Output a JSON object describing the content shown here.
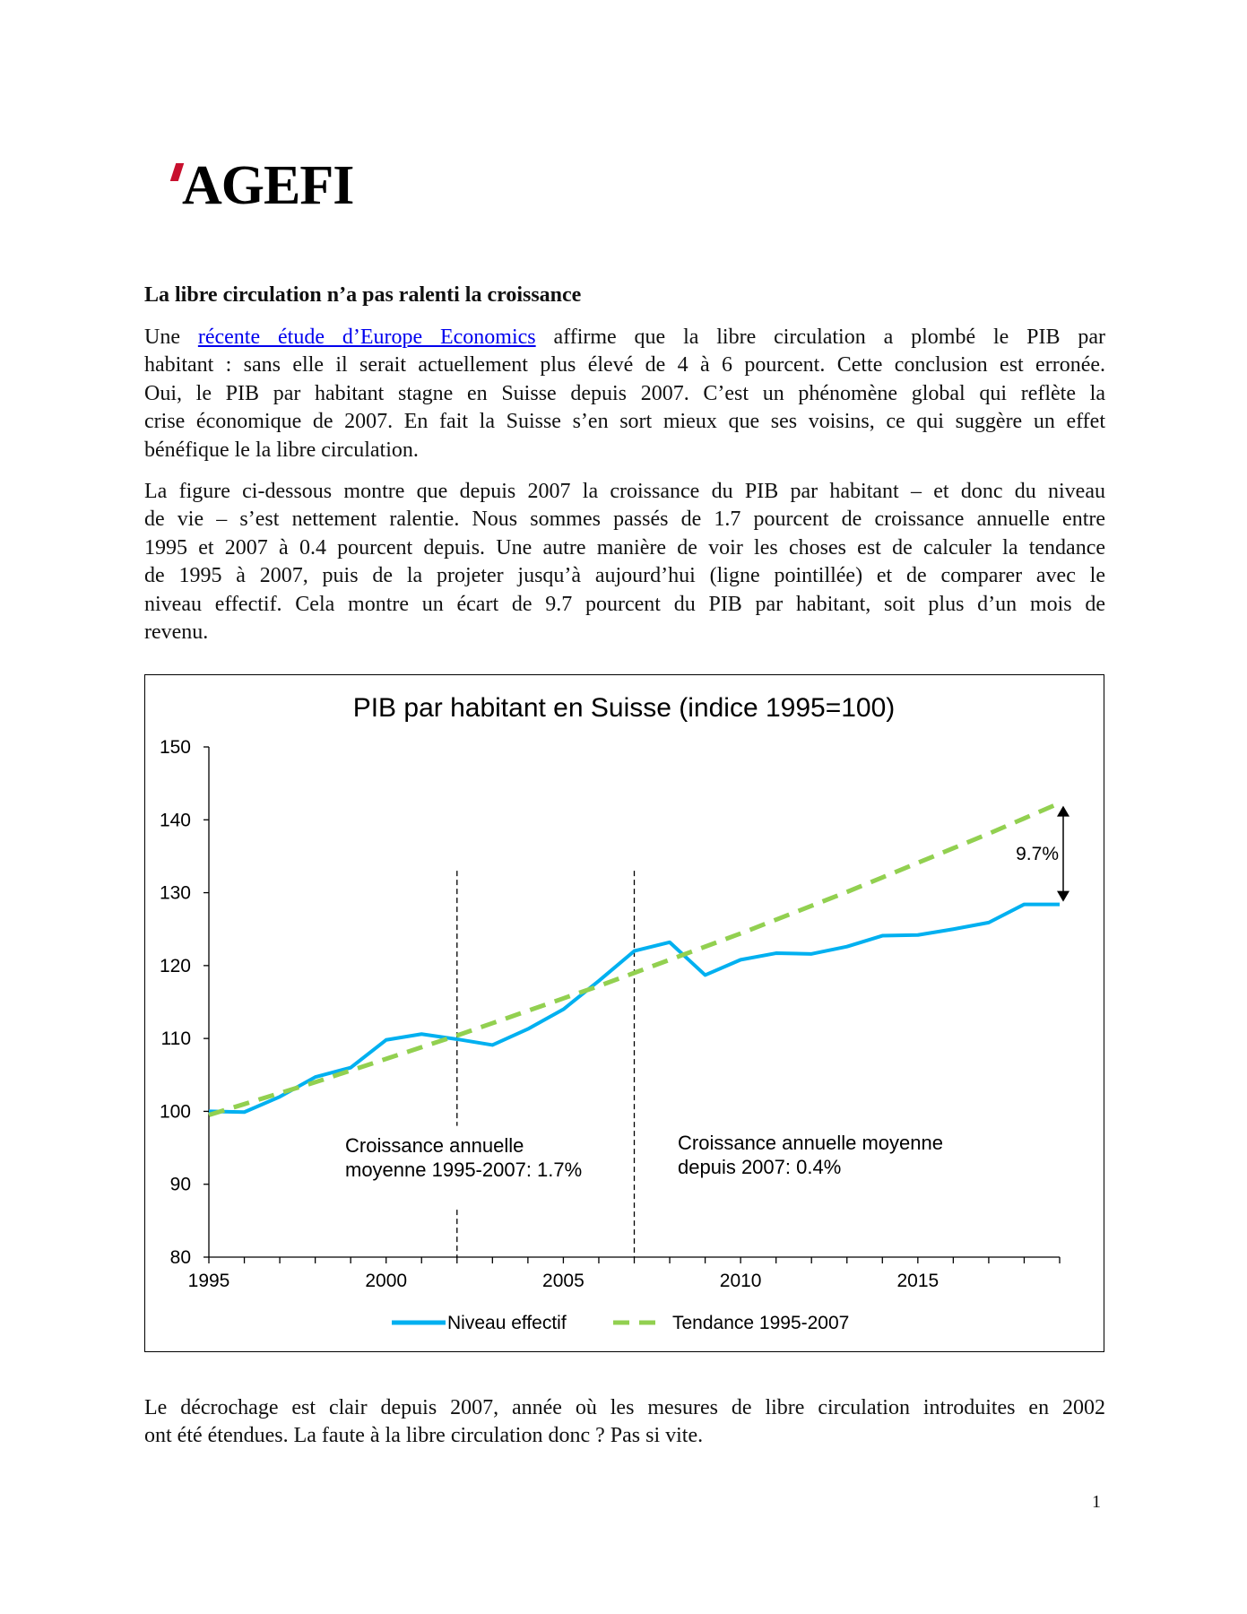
{
  "logo": {
    "text": "AGEFI",
    "accent_color": "#c8102e"
  },
  "heading": "La libre circulation n’a pas ralenti la croissance",
  "paragraph1": {
    "first_line": {
      "prefix": "Une ",
      "link": "récente étude d’Europe Economics",
      "suffix": " affirme que la libre circulation a plombé le PIB par"
    },
    "lines": [
      "habitant : sans elle il serait actuellement plus élevé de 4 à 6 pourcent. Cette conclusion est erronée.",
      "Oui, le PIB par habitant stagne en Suisse depuis 2007. C’est un phénomène global qui reflète la",
      "crise économique de 2007. En fait la Suisse s’en sort mieux que ses voisins, ce qui suggère un effet",
      "bénéfique le la libre circulation."
    ]
  },
  "paragraph2": {
    "lines": [
      "La figure ci-dessous montre que depuis 2007 la croissance du PIB par habitant – et donc du niveau",
      "de vie – s’est nettement ralentie. Nous sommes passés de 1.7 pourcent de croissance annuelle entre",
      "1995 et 2007 à 0.4 pourcent depuis. Une autre manière de voir les choses est de calculer la tendance",
      "de 1995 à 2007, puis de la projeter jusqu’à aujourd’hui (ligne pointillée) et de comparer avec le",
      "niveau effectif. Cela montre un écart de 9.7 pourcent du PIB par habitant, soit plus d’un mois de",
      "revenu."
    ]
  },
  "paragraph3": {
    "lines": [
      "Le décrochage est clair depuis 2007, année où les mesures de libre circulation introduites en 2002",
      "ont été étendues. La faute à la libre circulation donc ? Pas si vite."
    ]
  },
  "page_number": "1",
  "chart_data": {
    "type": "line",
    "title": "PIB par habitant en Suisse (indice 1995=100)",
    "xlabel": "",
    "ylabel": "",
    "xlim": [
      1995,
      2019
    ],
    "ylim": [
      80,
      150
    ],
    "x_ticks": [
      1995,
      2000,
      2005,
      2010,
      2015
    ],
    "y_ticks": [
      80,
      90,
      100,
      110,
      120,
      130,
      140,
      150
    ],
    "grid": false,
    "legend_position": "bottom",
    "x": [
      1995,
      1996,
      1997,
      1998,
      1999,
      2000,
      2001,
      2002,
      2003,
      2004,
      2005,
      2006,
      2007,
      2008,
      2009,
      2010,
      2011,
      2012,
      2013,
      2014,
      2015,
      2016,
      2017,
      2018,
      2019
    ],
    "series": [
      {
        "name": "Niveau effectif",
        "style": "solid",
        "color": "#00b0f0",
        "values": [
          100,
          99.9,
          102,
          104.7,
          106,
          109.8,
          110.6,
          109.9,
          109.1,
          111.3,
          114,
          117.9,
          122,
          123.2,
          118.7,
          120.8,
          121.7,
          121.6,
          122.6,
          124.1,
          124.2,
          125,
          125.9,
          128.4,
          128.4
        ]
      },
      {
        "name": "Tendance 1995-2007",
        "style": "dashed",
        "color": "#92d050",
        "values": [
          99.5,
          101,
          102.5,
          104,
          105.6,
          107.2,
          108.8,
          110.4,
          112.1,
          113.8,
          115.5,
          117.2,
          119,
          120.8,
          122.6,
          124.4,
          126.3,
          128.2,
          130.1,
          132.1,
          134.1,
          136.1,
          138.1,
          140.2,
          142.3
        ]
      }
    ],
    "vertical_markers": [
      2002,
      2007
    ],
    "annotations": [
      {
        "lines": [
          "Croissance annuelle",
          "moyenne 1995-2007: 1.7%"
        ]
      },
      {
        "lines": [
          "Croissance annuelle moyenne",
          "depuis 2007: 0.4%"
        ]
      },
      {
        "text": "9.7%",
        "arrow_from": 142.3,
        "arrow_to": 128.4,
        "x": 2019
      }
    ]
  }
}
